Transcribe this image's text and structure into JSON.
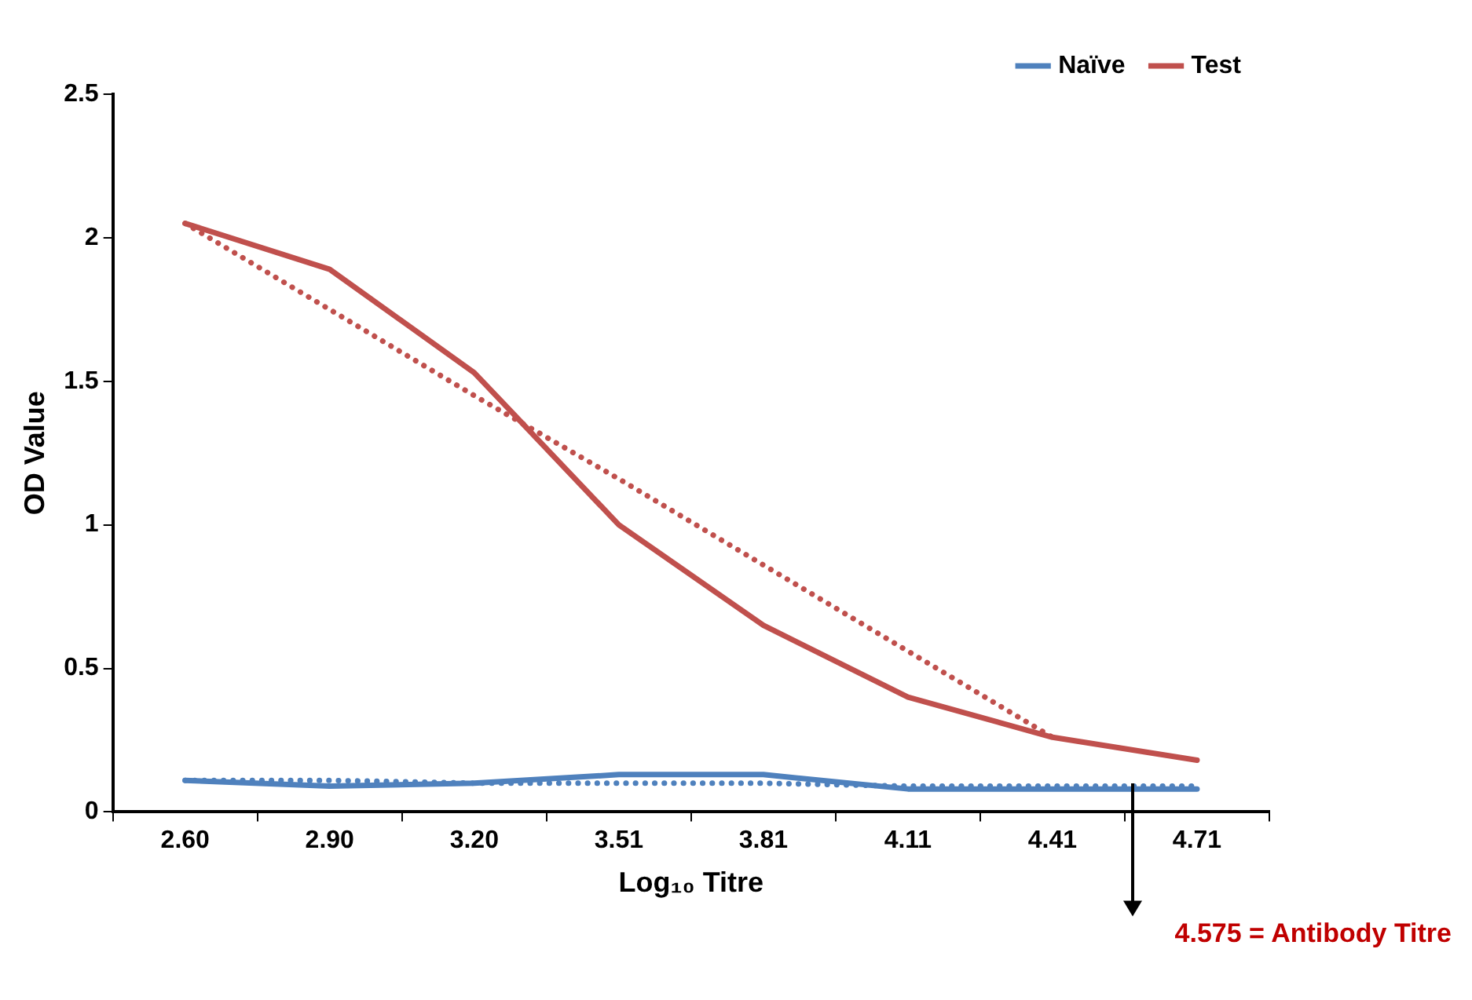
{
  "chart_data": {
    "type": "line",
    "xlabel": "Log₁₀ Titre",
    "ylabel": "OD Value",
    "categories": [
      "2.60",
      "2.90",
      "3.20",
      "3.51",
      "3.81",
      "4.11",
      "4.41",
      "4.71"
    ],
    "series": [
      {
        "name": "Naïve",
        "color": "#4f81bd",
        "values": [
          0.11,
          0.09,
          0.1,
          0.13,
          0.13,
          0.08,
          0.08,
          0.08
        ]
      },
      {
        "name": "Test",
        "color": "#c0504d",
        "values": [
          2.05,
          1.89,
          1.53,
          1.0,
          0.65,
          0.4,
          0.26,
          0.18
        ]
      },
      {
        "color": "#4f81bd",
        "line_style": "dotted",
        "values": [
          0.11,
          0.11,
          0.1,
          0.1,
          0.1,
          0.09,
          0.09,
          0.09
        ]
      },
      {
        "color": "#c0504d",
        "line_style": "dotted",
        "values": [
          2.05,
          1.75,
          1.45,
          1.16,
          0.86,
          0.56,
          0.26,
          null
        ]
      }
    ],
    "ylim": [
      0,
      2.5
    ],
    "yticks": [
      0,
      0.5,
      1,
      1.5,
      2,
      2.5
    ],
    "grid": false,
    "legend": "top right",
    "marker": "none",
    "line_style": "solid",
    "annotations": [
      "4.575 = Antibody Titre"
    ]
  }
}
